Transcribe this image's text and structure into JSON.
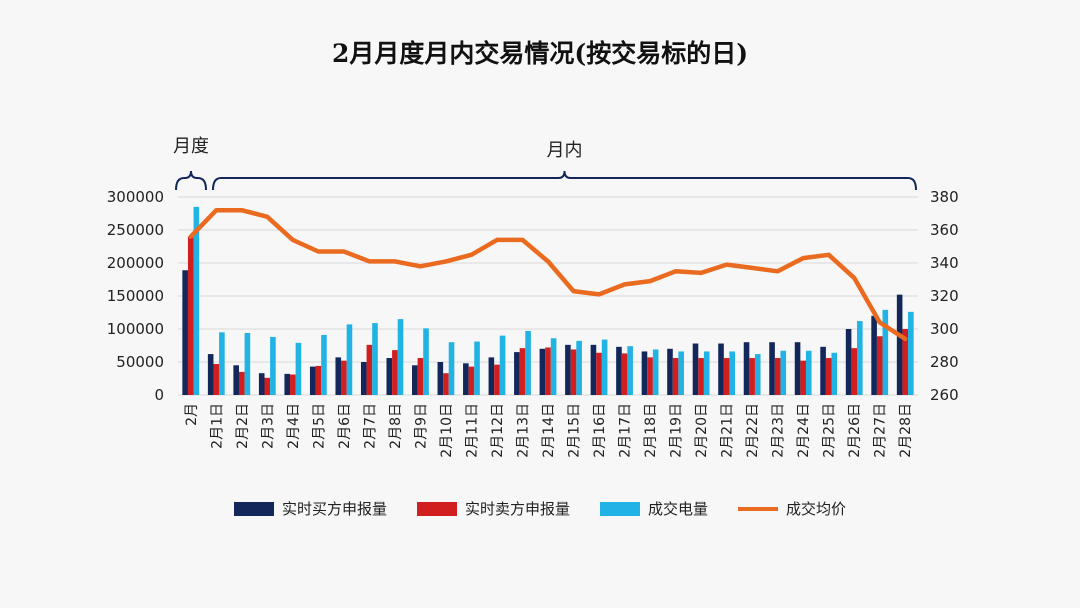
{
  "chart_data": {
    "type": "bar+line",
    "title": "2月月度月内交易情况(按交易标的日)",
    "group_labels": {
      "monthly": "月度",
      "intramonth": "月内"
    },
    "categories": [
      "2月",
      "2月1日",
      "2月2日",
      "2月3日",
      "2月4日",
      "2月5日",
      "2月6日",
      "2月7日",
      "2月8日",
      "2月9日",
      "2月10日",
      "2月11日",
      "2月12日",
      "2月13日",
      "2月14日",
      "2月15日",
      "2月16日",
      "2月17日",
      "2月18日",
      "2月19日",
      "2月20日",
      "2月21日",
      "2月22日",
      "2月23日",
      "2月24日",
      "2月25日",
      "2月26日",
      "2月27日",
      "2月28日"
    ],
    "left_axis": {
      "min": 0,
      "max": 300000,
      "ticks": [
        0,
        50000,
        100000,
        150000,
        200000,
        250000,
        300000
      ],
      "tick_labels": [
        "0",
        "50000",
        "100000",
        "150000",
        "200000",
        "250000",
        "300000"
      ]
    },
    "right_axis": {
      "min": 260,
      "max": 380,
      "ticks": [
        260,
        280,
        300,
        320,
        340,
        360,
        380
      ],
      "tick_labels": [
        "260",
        "280",
        "300",
        "320",
        "340",
        "360",
        "380"
      ]
    },
    "series": [
      {
        "name": "实时买方申报量",
        "type": "bar",
        "axis": "left",
        "color": "#13275b",
        "values": [
          189000,
          62000,
          45000,
          33000,
          32000,
          43000,
          57000,
          50000,
          56000,
          45000,
          50000,
          48000,
          57000,
          65000,
          70000,
          76000,
          76000,
          73000,
          66000,
          70000,
          78000,
          78000,
          80000,
          80000,
          80000,
          73000,
          100000,
          120000,
          152000
        ]
      },
      {
        "name": "实时卖方申报量",
        "type": "bar",
        "axis": "left",
        "color": "#d11f1f",
        "values": [
          240000,
          47000,
          35000,
          26000,
          31000,
          44000,
          52000,
          76000,
          68000,
          56000,
          33000,
          43000,
          46000,
          71000,
          72000,
          69000,
          64000,
          63000,
          57000,
          56000,
          56000,
          56000,
          56000,
          56000,
          52000,
          56000,
          71000,
          89000,
          100000
        ]
      },
      {
        "name": "成交电量",
        "type": "bar",
        "axis": "left",
        "color": "#21b3e3",
        "values": [
          285000,
          95000,
          94000,
          88000,
          79000,
          91000,
          107000,
          109000,
          115000,
          101000,
          80000,
          81000,
          90000,
          97000,
          86000,
          82000,
          84000,
          74000,
          69000,
          66000,
          66000,
          66000,
          62000,
          67000,
          67000,
          64000,
          112000,
          129000,
          126000
        ]
      },
      {
        "name": "成交均价",
        "type": "line",
        "axis": "right",
        "color": "#ea6a1f",
        "values": [
          356,
          372,
          372,
          368,
          354,
          347,
          347,
          341,
          341,
          338,
          341,
          345,
          354,
          354,
          341,
          323,
          321,
          327,
          329,
          335,
          334,
          339,
          337,
          335,
          343,
          345,
          331,
          304,
          294
        ]
      }
    ]
  }
}
